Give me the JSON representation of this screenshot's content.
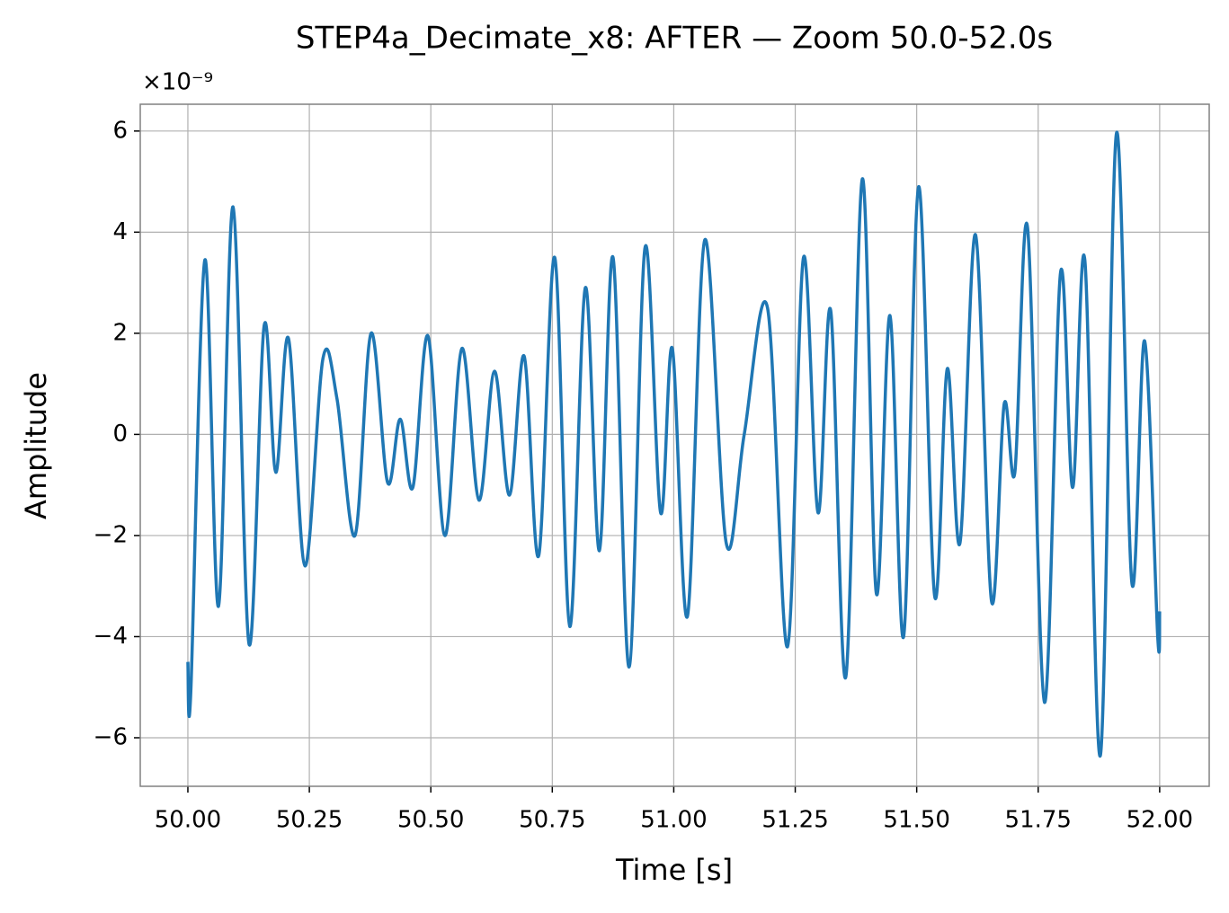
{
  "chart_data": {
    "type": "line",
    "title": "STEP4a_Decimate_x8: AFTER — Zoom 50.0-52.0s",
    "offset_text": "×10⁻⁹",
    "xlabel": "Time [s]",
    "ylabel": "Amplitude",
    "x": [
      50.0,
      50.006,
      50.035,
      50.063,
      50.093,
      50.126,
      50.157,
      50.181,
      50.207,
      50.241,
      50.278,
      50.307,
      50.344,
      50.377,
      50.411,
      50.437,
      50.463,
      50.494,
      50.529,
      50.564,
      50.599,
      50.631,
      50.662,
      50.692,
      50.722,
      50.755,
      50.786,
      50.818,
      50.847,
      50.875,
      50.908,
      50.941,
      50.973,
      50.997,
      51.028,
      51.064,
      51.108,
      51.145,
      51.193,
      51.234,
      51.267,
      51.297,
      51.323,
      51.354,
      51.388,
      51.417,
      51.445,
      51.473,
      51.504,
      51.537,
      51.563,
      51.589,
      51.621,
      51.654,
      51.68,
      51.702,
      51.728,
      51.763,
      51.796,
      51.821,
      51.846,
      51.878,
      51.911,
      51.943,
      51.969,
      51.996,
      52.0
    ],
    "series": [
      {
        "name": "Amplitude",
        "color": "#1f77b4",
        "values": [
          -4.5,
          -5.1,
          3.45,
          -3.4,
          4.5,
          -4.15,
          2.15,
          -0.75,
          1.9,
          -2.6,
          1.5,
          0.7,
          -2.0,
          2.0,
          -0.95,
          0.3,
          -1.05,
          1.95,
          -2.0,
          1.7,
          -1.3,
          1.25,
          -1.2,
          1.55,
          -2.4,
          3.5,
          -3.8,
          2.9,
          -2.3,
          3.5,
          -4.6,
          3.7,
          -1.55,
          1.7,
          -3.6,
          3.85,
          -2.15,
          0.0,
          2.5,
          -4.2,
          3.5,
          -1.55,
          2.45,
          -4.8,
          5.05,
          -3.15,
          2.35,
          -4.0,
          4.9,
          -3.2,
          1.3,
          -2.15,
          3.95,
          -3.3,
          0.6,
          -0.75,
          4.1,
          -5.3,
          3.2,
          -1.05,
          3.45,
          -6.35,
          5.95,
          -2.95,
          1.85,
          -4.0,
          -3.5
        ]
      }
    ],
    "xlim": [
      49.902,
      52.102
    ],
    "ylim": [
      -6.96,
      6.53
    ],
    "xticks": [
      {
        "value": 50,
        "label": "50.00"
      },
      {
        "value": 50.25,
        "label": "50.25"
      },
      {
        "value": 50.5,
        "label": "50.50"
      },
      {
        "value": 50.75,
        "label": "50.75"
      },
      {
        "value": 51,
        "label": "51.00"
      },
      {
        "value": 51.25,
        "label": "51.25"
      },
      {
        "value": 51.5,
        "label": "51.50"
      },
      {
        "value": 51.75,
        "label": "51.75"
      },
      {
        "value": 52,
        "label": "52.00"
      }
    ],
    "yticks": [
      {
        "value": -6,
        "label": "−6"
      },
      {
        "value": -4,
        "label": "−4"
      },
      {
        "value": -2,
        "label": "−2"
      },
      0,
      2,
      4,
      6
    ],
    "grid": true
  }
}
